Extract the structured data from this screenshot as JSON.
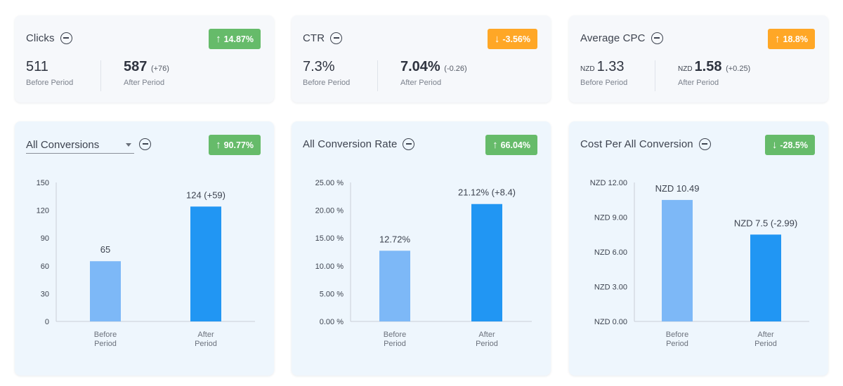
{
  "colors": {
    "green_badge": "#66bb6a",
    "orange_badge": "#ffa726",
    "bar_before": "#7db8f7",
    "bar_after": "#2196f3"
  },
  "kpis": [
    {
      "title": "Clicks",
      "badge": {
        "text": "14.87%",
        "direction": "up",
        "color": "green"
      },
      "before": {
        "prefix": "",
        "value": "511",
        "label": "Before Period"
      },
      "after": {
        "prefix": "",
        "value": "587",
        "delta": "(+76)",
        "label": "After Period"
      }
    },
    {
      "title": "CTR",
      "badge": {
        "text": "-3.56%",
        "direction": "down",
        "color": "orange"
      },
      "before": {
        "prefix": "",
        "value": "7.3%",
        "label": "Before Period"
      },
      "after": {
        "prefix": "",
        "value": "7.04%",
        "delta": "(-0.26)",
        "label": "After Period"
      }
    },
    {
      "title": "Average CPC",
      "badge": {
        "text": "18.8%",
        "direction": "up",
        "color": "orange"
      },
      "before": {
        "prefix": "NZD",
        "value": "1.33",
        "label": "Before Period"
      },
      "after": {
        "prefix": "NZD",
        "value": "1.58",
        "delta": "(+0.25)",
        "label": "After Period"
      }
    }
  ],
  "charts": [
    {
      "title": "All Conversions",
      "has_dropdown": true,
      "badge": {
        "text": "90.77%",
        "direction": "up",
        "color": "green"
      }
    },
    {
      "title": "All Conversion Rate",
      "has_dropdown": false,
      "badge": {
        "text": "66.04%",
        "direction": "up",
        "color": "green"
      }
    },
    {
      "title": "Cost Per All Conversion",
      "has_dropdown": false,
      "badge": {
        "text": "-28.5%",
        "direction": "down",
        "color": "green"
      }
    }
  ],
  "chart_data": [
    {
      "type": "bar",
      "categories": [
        "Before Period",
        "After Period"
      ],
      "category_lines": [
        [
          "Before",
          "Period"
        ],
        [
          "After",
          "Period"
        ]
      ],
      "values": [
        65,
        124
      ],
      "data_labels": [
        "65",
        "124 (+59)"
      ],
      "ylim": [
        0,
        150
      ],
      "yticks": [
        0,
        30,
        60,
        90,
        120,
        150
      ],
      "ytick_labels": [
        "0",
        "30",
        "60",
        "90",
        "120",
        "150"
      ],
      "xlabel": "",
      "ylabel": "",
      "grid": false
    },
    {
      "type": "bar",
      "categories": [
        "Before Period",
        "After Period"
      ],
      "category_lines": [
        [
          "Before",
          "Period"
        ],
        [
          "After",
          "Period"
        ]
      ],
      "values": [
        12.72,
        21.12
      ],
      "data_labels": [
        "12.72%",
        "21.12% (+8.4)"
      ],
      "ylim": [
        0,
        25
      ],
      "yticks": [
        0,
        5,
        10,
        15,
        20,
        25
      ],
      "ytick_labels": [
        "0.00 %",
        "5.00 %",
        "10.00 %",
        "15.00 %",
        "20.00 %",
        "25.00 %"
      ],
      "xlabel": "",
      "ylabel": "",
      "grid": false
    },
    {
      "type": "bar",
      "categories": [
        "Before Period",
        "After Period"
      ],
      "category_lines": [
        [
          "Before",
          "Period"
        ],
        [
          "After",
          "Period"
        ]
      ],
      "values": [
        10.49,
        7.5
      ],
      "data_labels": [
        "NZD 10.49",
        "NZD 7.5 (-2.99)"
      ],
      "ylim": [
        0,
        12
      ],
      "yticks": [
        0,
        3,
        6,
        9,
        12
      ],
      "ytick_labels": [
        "NZD 0.00",
        "NZD 3.00",
        "NZD 6.00",
        "NZD 9.00",
        "NZD 12.00"
      ],
      "xlabel": "",
      "ylabel": "",
      "grid": false
    }
  ]
}
